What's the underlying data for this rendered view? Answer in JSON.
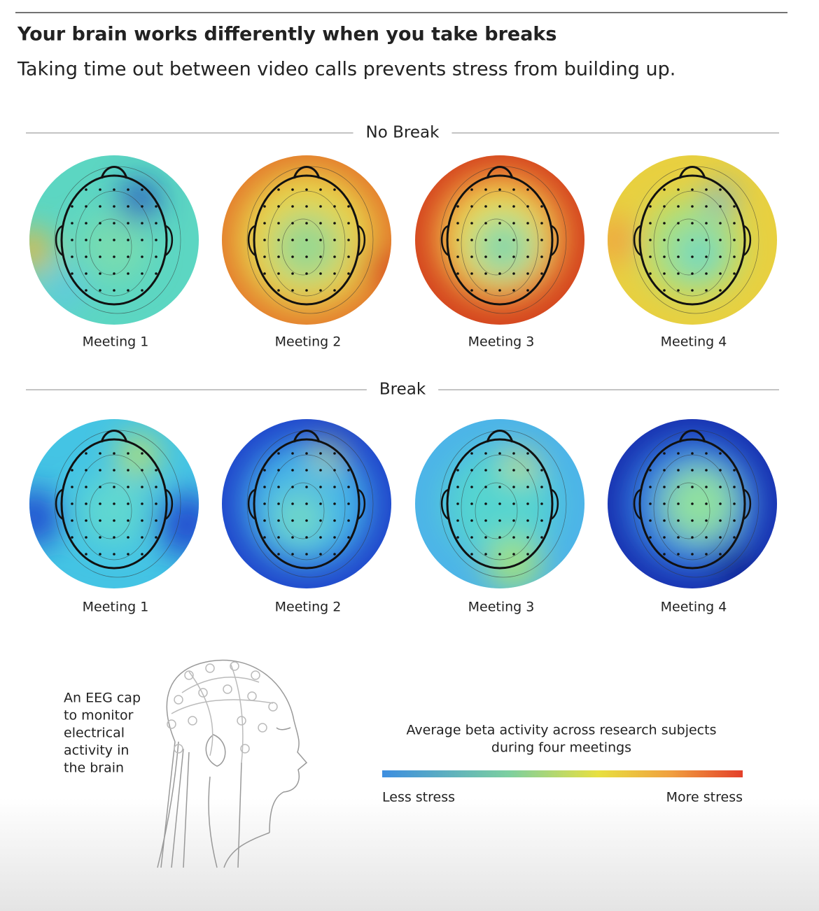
{
  "header": {
    "title": "Your brain works differently when you take breaks",
    "subtitle": "Taking time out between video calls prevents stress from building up."
  },
  "sections": [
    {
      "label": "No Break",
      "meetings": [
        "Meeting 1",
        "Meeting 2",
        "Meeting 3",
        "Meeting 4"
      ]
    },
    {
      "label": "Break",
      "meetings": [
        "Meeting 1",
        "Meeting 2",
        "Meeting 3",
        "Meeting 4"
      ]
    }
  ],
  "eeg_caption": {
    "lines": [
      "An EEG cap",
      "to monitor",
      "electrical",
      "activity in",
      "the brain"
    ]
  },
  "legend": {
    "title_lines": [
      "Average beta activity across research subjects",
      "during four meetings"
    ],
    "low": "Less stress",
    "high": "More stress"
  }
}
